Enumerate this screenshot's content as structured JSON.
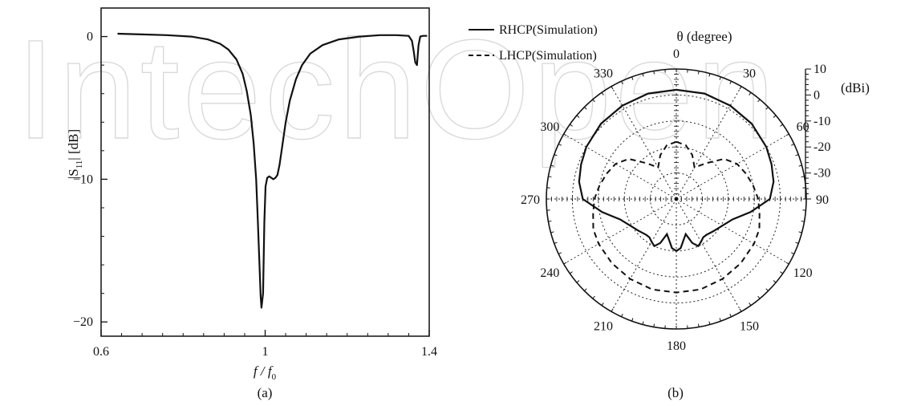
{
  "watermark_text": "IntechOpen",
  "chart_data": [
    {
      "type": "line",
      "panel_label": "(a)",
      "xlabel": "f / f0",
      "xlabel_main": "f / f",
      "xlabel_sub": "0",
      "ylabel": "|S11| [dB]",
      "ylabel_pre": "|S",
      "ylabel_sub": "11",
      "ylabel_post": "| [dB]",
      "xlim": [
        0.6,
        1.4
      ],
      "ylim": [
        -21,
        2
      ],
      "xticks": [
        0.6,
        1,
        1.4
      ],
      "xtick_labels": [
        "0.6",
        "1",
        "1.4"
      ],
      "yticks": [
        0,
        -10,
        -20
      ],
      "ytick_labels": [
        "0",
        "−10",
        "−20"
      ],
      "grid": false,
      "series": [
        {
          "x": [
            0.64,
            0.7,
            0.76,
            0.82,
            0.86,
            0.89,
            0.91,
            0.93,
            0.945,
            0.955,
            0.965,
            0.972,
            0.978,
            0.982,
            0.986,
            0.989,
            0.991,
            0.993,
            0.995,
            0.998,
            1.001,
            1.005,
            1.01,
            1.015,
            1.02,
            1.025,
            1.03,
            1.035,
            1.04,
            1.05,
            1.06,
            1.075,
            1.09,
            1.11,
            1.14,
            1.18,
            1.23,
            1.28,
            1.32,
            1.35,
            1.358,
            1.362,
            1.366,
            1.37,
            1.374,
            1.378,
            1.385,
            1.395
          ],
          "y": [
            0.2,
            0.15,
            0.1,
            0.0,
            -0.2,
            -0.5,
            -0.9,
            -1.6,
            -2.6,
            -3.8,
            -5.5,
            -7.5,
            -10.0,
            -12.8,
            -15.8,
            -18.2,
            -19.0,
            -18.5,
            -18.0,
            -13.0,
            -10.5,
            -9.9,
            -9.8,
            -9.9,
            -10.0,
            -9.9,
            -9.7,
            -9.0,
            -8.0,
            -6.0,
            -4.5,
            -3.0,
            -2.0,
            -1.2,
            -0.6,
            -0.2,
            0.0,
            0.1,
            0.1,
            0.05,
            -0.3,
            -1.0,
            -1.8,
            -2.0,
            -0.6,
            0.0,
            0.05,
            0.05
          ]
        }
      ]
    },
    {
      "type": "polar",
      "panel_label": "(b)",
      "angle_title": "θ (degree)",
      "radial_unit": "(dBi)",
      "rlim": [
        -40,
        10
      ],
      "r_ticks": [
        10,
        0,
        -10,
        -20,
        -30
      ],
      "r_tick_labels": [
        "10",
        "0",
        "-10",
        "-20",
        "-30"
      ],
      "angle_ticks": [
        0,
        30,
        60,
        90,
        120,
        150,
        180,
        210,
        240,
        270,
        300,
        330
      ],
      "angle_tick_labels": [
        "0",
        "30",
        "60",
        "90",
        "120",
        "150",
        "180",
        "210",
        "240",
        "270",
        "300",
        "330"
      ],
      "grid": true,
      "legend_position": "top-left",
      "series": [
        {
          "name": "RHCP(Simulation)",
          "style": "solid",
          "theta": [
            0,
            15,
            30,
            45,
            60,
            70,
            80,
            90,
            100,
            110,
            120,
            130,
            140,
            145,
            150,
            155,
            160,
            165,
            170,
            175,
            180,
            185,
            190,
            195,
            200,
            205,
            210,
            215,
            220,
            230,
            240,
            250,
            260,
            270,
            280,
            290,
            300,
            315,
            330,
            345,
            360
          ],
          "r": [
            2.0,
            2.0,
            1.5,
            1.0,
            0.0,
            -1.0,
            -2.0,
            -4.0,
            -11.0,
            -17.0,
            -19.5,
            -21.0,
            -22.0,
            -22.0,
            -21.0,
            -20.0,
            -22.0,
            -26.0,
            -24.0,
            -21.0,
            -20.0,
            -21.0,
            -24.0,
            -26.0,
            -22.0,
            -20.0,
            -21.0,
            -22.0,
            -22.0,
            -21.0,
            -19.5,
            -17.0,
            -11.0,
            -4.0,
            -2.0,
            -1.0,
            0.0,
            1.0,
            1.5,
            2.0,
            2.0
          ]
        },
        {
          "name": "LHCP(Simulation)",
          "style": "dashed",
          "theta": [
            0,
            10,
            20,
            30,
            40,
            50,
            60,
            70,
            80,
            90,
            100,
            110,
            120,
            135,
            150,
            165,
            180,
            195,
            210,
            225,
            240,
            250,
            260,
            270,
            280,
            290,
            300,
            310,
            320,
            330,
            340,
            350,
            360
          ],
          "r": [
            -18.0,
            -19.0,
            -22.0,
            -26.0,
            -22.0,
            -16.0,
            -13.0,
            -11.5,
            -10.0,
            -8.5,
            -7.5,
            -6.0,
            -5.5,
            -5.0,
            -4.5,
            -4.0,
            -4.0,
            -4.0,
            -4.5,
            -5.0,
            -5.5,
            -6.0,
            -7.5,
            -8.5,
            -10.0,
            -11.5,
            -13.0,
            -16.0,
            -22.0,
            -26.0,
            -22.0,
            -19.0,
            -18.0
          ]
        }
      ]
    }
  ]
}
